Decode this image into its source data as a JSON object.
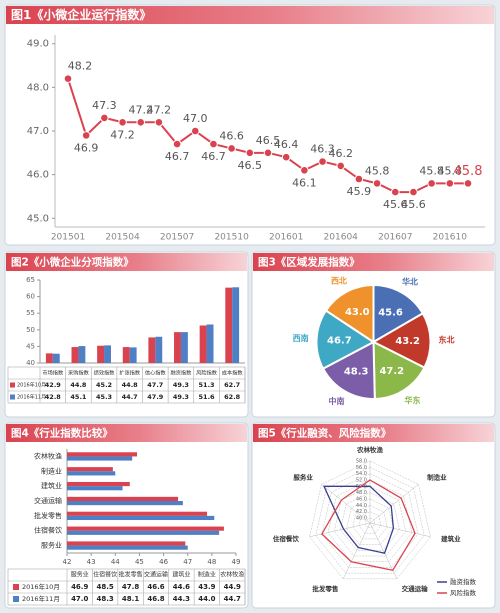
{
  "chart_data": [
    {
      "type": "line",
      "title": "图1《小微企业运行指数》",
      "categories": [
        "201501",
        null,
        null,
        "201504",
        null,
        null,
        "201507",
        null,
        null,
        "201510",
        null,
        null,
        "201601",
        null,
        null,
        "201604",
        null,
        null,
        "201607",
        null,
        null,
        "201610",
        null
      ],
      "values": [
        48.2,
        46.9,
        47.3,
        47.2,
        47.2,
        47.2,
        46.7,
        47.0,
        46.7,
        46.6,
        46.5,
        46.5,
        46.4,
        46.1,
        46.3,
        46.2,
        45.9,
        45.8,
        45.6,
        45.6,
        45.8,
        45.8,
        45.8
      ],
      "value_labels": [
        "48.2",
        "46.9",
        "47.3",
        "47.2",
        "47.2",
        "47.2",
        "46.7",
        "47.0",
        "46.7",
        "46.6",
        "46.5",
        "46.5",
        "46.4",
        "46.1",
        "46.3",
        "46.2",
        "45.9",
        "45.8",
        "45.6",
        "45.6",
        "45.8",
        "45.8",
        "45.8"
      ],
      "color": "#d9434f",
      "ylim": [
        44.8,
        49.2
      ],
      "yticks": [
        {
          "value": 45,
          "label": "45.0"
        },
        {
          "value": 46,
          "label": "46.0"
        },
        {
          "value": 47,
          "label": "47.0"
        },
        {
          "value": 48,
          "label": "48.0"
        },
        {
          "value": 49,
          "label": "49.0"
        }
      ]
    },
    {
      "type": "bar",
      "title": "图2《小微企业分项指数》",
      "categories": [
        "市场指数",
        "采购指数",
        "绩效指数",
        "扩张指数",
        "信心指数",
        "融资指数",
        "风险指数",
        "成本指数"
      ],
      "series": [
        {
          "name": "2016年10月",
          "color": "#d9434f",
          "values": [
            42.9,
            44.8,
            45.2,
            44.8,
            47.7,
            49.3,
            51.3,
            62.7
          ]
        },
        {
          "name": "2016年11月",
          "color": "#4f7fc4",
          "values": [
            42.8,
            45.1,
            45.3,
            44.7,
            47.9,
            49.3,
            51.6,
            62.8
          ]
        }
      ],
      "ylim": [
        40,
        65
      ],
      "yticks": [
        40,
        45,
        50,
        55,
        60,
        65
      ]
    },
    {
      "type": "pie",
      "title": "图3《区域发展指数》",
      "categories": [
        "华北",
        "东北",
        "华东",
        "中南",
        "西南",
        "西北"
      ],
      "values": [
        45.6,
        43.2,
        47.2,
        48.3,
        46.7,
        43.0
      ],
      "value_labels": [
        "45.6",
        "43.2",
        "47.2",
        "48.3",
        "46.7",
        "43.0"
      ],
      "colors": [
        "#4a6fb5",
        "#c0392b",
        "#8cb84a",
        "#7b5ea7",
        "#3fa8c4",
        "#f0922b"
      ]
    },
    {
      "type": "bar",
      "orientation": "horizontal",
      "title": "图4《行业指数比较》",
      "categories": [
        "服务业",
        "住宿餐饮",
        "批发零售",
        "交通运输",
        "建筑业",
        "制造业",
        "农林牧渔"
      ],
      "series": [
        {
          "name": "2016年10月",
          "color": "#d9434f",
          "values": [
            46.9,
            48.5,
            47.8,
            46.6,
            44.6,
            43.9,
            44.9
          ]
        },
        {
          "name": "2016年11月",
          "color": "#4f7fc4",
          "values": [
            47.0,
            48.3,
            48.1,
            46.8,
            44.3,
            44.0,
            44.7
          ],
          "value_labels": [
            "47.0",
            "48.3",
            "48.1",
            "46.8",
            "44.3",
            "44.0",
            "44.7"
          ]
        }
      ],
      "xlim": [
        42,
        49
      ],
      "xticks": [
        42,
        43,
        44,
        45,
        46,
        47,
        48,
        49
      ]
    },
    {
      "type": "radar",
      "title": "图5《行业融资、风险指数》",
      "categories": [
        "农林牧渔",
        "制造业",
        "建筑业",
        "交通运输",
        "批发零售",
        "住宿餐饮",
        "服务业"
      ],
      "series": [
        {
          "name": "融资指数",
          "color": "#3a3f8f",
          "values": [
            50,
            47,
            46,
            49,
            47,
            47,
            57
          ]
        },
        {
          "name": "风险指数",
          "color": "#d9434f",
          "values": [
            52,
            51,
            53,
            55,
            52,
            54,
            50
          ]
        }
      ],
      "rlim": [
        40,
        58
      ],
      "rticks": [
        {
          "value": 40,
          "label": "40.0"
        },
        {
          "value": 42,
          "label": "42.0"
        },
        {
          "value": 44,
          "label": "44.0"
        },
        {
          "value": 46,
          "label": "46.0"
        },
        {
          "value": 48,
          "label": "48.0"
        },
        {
          "value": 50,
          "label": "50.0"
        },
        {
          "value": 52,
          "label": "52.0"
        },
        {
          "value": 54,
          "label": "54.0"
        },
        {
          "value": 56,
          "label": "56.0"
        },
        {
          "value": 58,
          "label": "58.0"
        }
      ],
      "legend": "lower right"
    }
  ]
}
